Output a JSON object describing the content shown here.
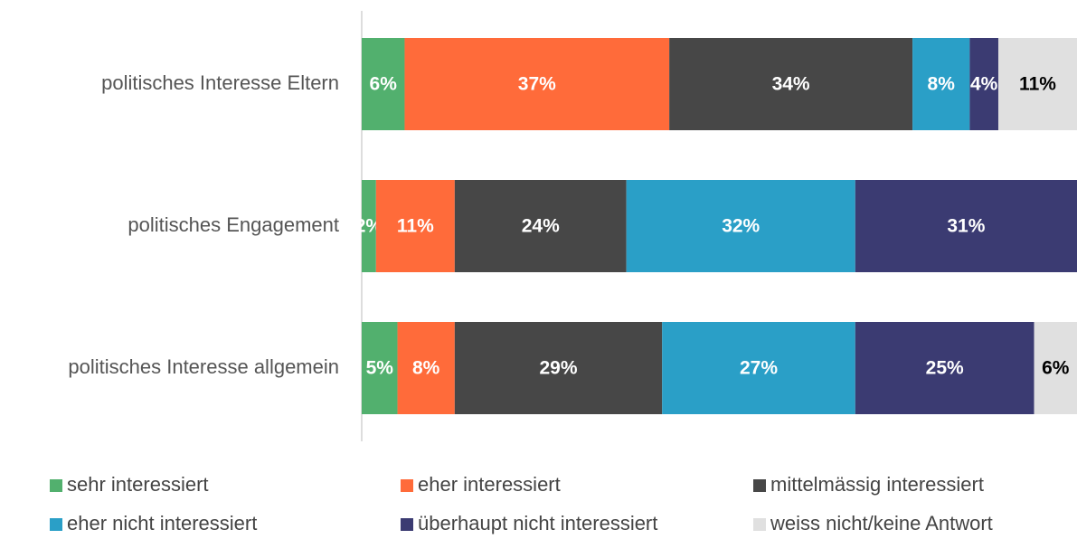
{
  "chart_data": {
    "type": "stacked_barh",
    "categories": [
      "politisches Interesse Eltern",
      "politisches Engagement",
      "politisches Interesse allgemein"
    ],
    "xlim": [
      0,
      100
    ],
    "legend": "bottom",
    "series": [
      {
        "name": "sehr interessiert",
        "color": "#52b06e",
        "label_color": "#ffffff",
        "values": [
          6,
          2,
          5
        ],
        "value_labels": [
          "6%",
          "2%",
          "5%"
        ]
      },
      {
        "name": "eher interessiert",
        "color": "#ff6b3a",
        "label_color": "#ffffff",
        "values": [
          37,
          11,
          8
        ],
        "value_labels": [
          "37%",
          "11%",
          "8%"
        ]
      },
      {
        "name": "mittelmässig interessiert",
        "color": "#474747",
        "label_color": "#ffffff",
        "values": [
          34,
          24,
          29
        ],
        "value_labels": [
          "34%",
          "24%",
          "29%"
        ]
      },
      {
        "name": "eher nicht interessiert",
        "color": "#2a9fc7",
        "label_color": "#ffffff",
        "values": [
          8,
          32,
          27
        ],
        "value_labels": [
          "8%",
          "32%",
          "27%"
        ]
      },
      {
        "name": "überhaupt nicht interessiert",
        "color": "#3b3b72",
        "label_color": "#ffffff",
        "values": [
          4,
          31,
          25
        ],
        "value_labels": [
          "4%",
          "31%",
          "25%"
        ]
      },
      {
        "name": "weiss nicht/keine Antwort",
        "color": "#e0e0e0",
        "label_color": "#000000",
        "values": [
          11,
          null,
          6
        ],
        "value_labels": [
          "11%",
          null,
          "6%"
        ]
      }
    ]
  }
}
